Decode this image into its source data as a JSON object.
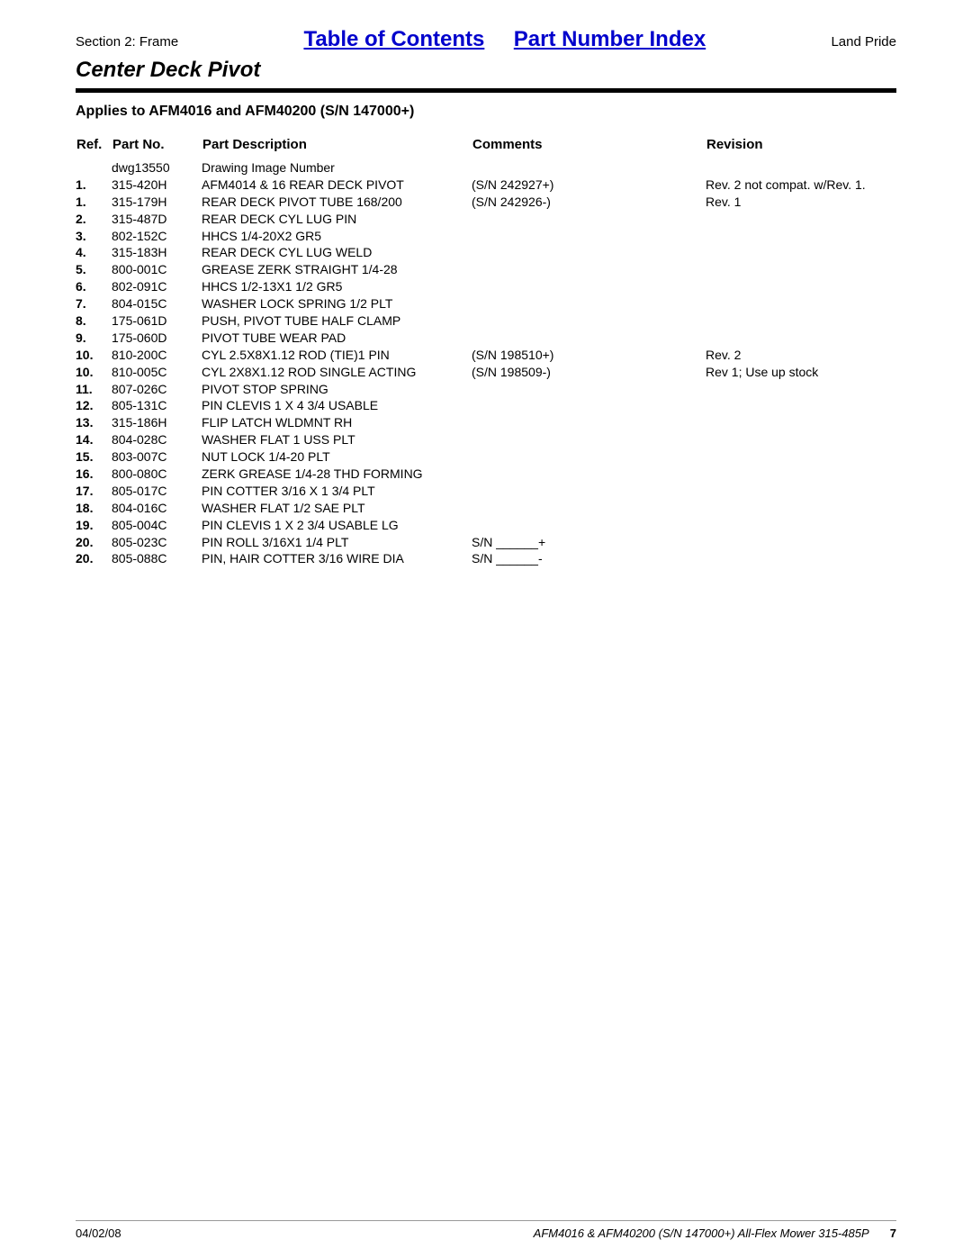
{
  "header": {
    "section": "Section 2: Frame",
    "toc_link": "Table of Contents",
    "pni_link": "Part Number Index",
    "brand": "Land Pride"
  },
  "title": "Center Deck Pivot",
  "applies_to": "Applies to AFM4016 and AFM40200 (S/N 147000+)",
  "columns": {
    "ref": "Ref.",
    "part_no": "Part No.",
    "description": "Part Description",
    "comments": "Comments",
    "revision": "Revision"
  },
  "rows": [
    {
      "ref": "",
      "part": "dwg13550",
      "desc": "Drawing Image Number",
      "comm": "",
      "rev": ""
    },
    {
      "ref": "1.",
      "part": "315-420H",
      "desc": "AFM4014 & 16 REAR DECK PIVOT",
      "comm": "(S/N 242927+)",
      "rev": "Rev. 2 not compat. w/Rev. 1."
    },
    {
      "ref": "1.",
      "part": "315-179H",
      "desc": "REAR DECK PIVOT TUBE 168/200",
      "comm": "(S/N 242926-)",
      "rev": "Rev. 1"
    },
    {
      "ref": "2.",
      "part": "315-487D",
      "desc": "REAR DECK CYL LUG PIN",
      "comm": "",
      "rev": ""
    },
    {
      "ref": "3.",
      "part": "802-152C",
      "desc": "HHCS 1/4-20X2 GR5",
      "comm": "",
      "rev": ""
    },
    {
      "ref": "4.",
      "part": "315-183H",
      "desc": "REAR DECK CYL LUG WELD",
      "comm": "",
      "rev": ""
    },
    {
      "ref": "5.",
      "part": "800-001C",
      "desc": "GREASE ZERK STRAIGHT 1/4-28",
      "comm": "",
      "rev": ""
    },
    {
      "ref": "6.",
      "part": "802-091C",
      "desc": "HHCS 1/2-13X1 1/2 GR5",
      "comm": "",
      "rev": ""
    },
    {
      "ref": "7.",
      "part": "804-015C",
      "desc": "WASHER LOCK SPRING 1/2 PLT",
      "comm": "",
      "rev": ""
    },
    {
      "ref": "8.",
      "part": "175-061D",
      "desc": "PUSH, PIVOT TUBE HALF CLAMP",
      "comm": "",
      "rev": ""
    },
    {
      "ref": "9.",
      "part": "175-060D",
      "desc": "PIVOT TUBE WEAR PAD",
      "comm": "",
      "rev": ""
    },
    {
      "ref": "10.",
      "part": "810-200C",
      "desc": "CYL 2.5X8X1.12 ROD (TIE)1 PIN",
      "comm": "(S/N 198510+)",
      "rev": "Rev. 2"
    },
    {
      "ref": "10.",
      "part": "810-005C",
      "desc": "CYL 2X8X1.12 ROD SINGLE ACTING",
      "comm": "(S/N 198509-)",
      "rev": "Rev 1; Use up stock"
    },
    {
      "ref": "11.",
      "part": "807-026C",
      "desc": "PIVOT STOP SPRING",
      "comm": "",
      "rev": ""
    },
    {
      "ref": "12.",
      "part": "805-131C",
      "desc": "PIN CLEVIS 1 X 4 3/4 USABLE",
      "comm": "",
      "rev": ""
    },
    {
      "ref": "13.",
      "part": "315-186H",
      "desc": "FLIP LATCH WLDMNT RH",
      "comm": "",
      "rev": ""
    },
    {
      "ref": "14.",
      "part": "804-028C",
      "desc": "WASHER FLAT 1 USS PLT",
      "comm": "",
      "rev": ""
    },
    {
      "ref": "15.",
      "part": "803-007C",
      "desc": "NUT LOCK 1/4-20 PLT",
      "comm": "",
      "rev": ""
    },
    {
      "ref": "16.",
      "part": "800-080C",
      "desc": "ZERK GREASE 1/4-28 THD FORMING",
      "comm": "",
      "rev": ""
    },
    {
      "ref": "17.",
      "part": "805-017C",
      "desc": "PIN COTTER 3/16 X 1 3/4 PLT",
      "comm": "",
      "rev": ""
    },
    {
      "ref": "18.",
      "part": "804-016C",
      "desc": "WASHER FLAT 1/2 SAE PLT",
      "comm": "",
      "rev": ""
    },
    {
      "ref": "19.",
      "part": "805-004C",
      "desc": "PIN CLEVIS 1 X 2 3/4 USABLE LG",
      "comm": "",
      "rev": ""
    },
    {
      "ref": "20.",
      "part": "805-023C",
      "desc": "PIN ROLL 3/16X1 1/4 PLT",
      "comm": "S/N ______+",
      "rev": ""
    },
    {
      "ref": "20.",
      "part": "805-088C",
      "desc": "PIN, HAIR COTTER 3/16 WIRE DIA",
      "comm": "S/N ______-",
      "rev": ""
    }
  ],
  "footer": {
    "date": "04/02/08",
    "doc": "AFM4016 & AFM40200 (S/N 147000+) All-Flex Mower 315-485P",
    "page": "7"
  }
}
